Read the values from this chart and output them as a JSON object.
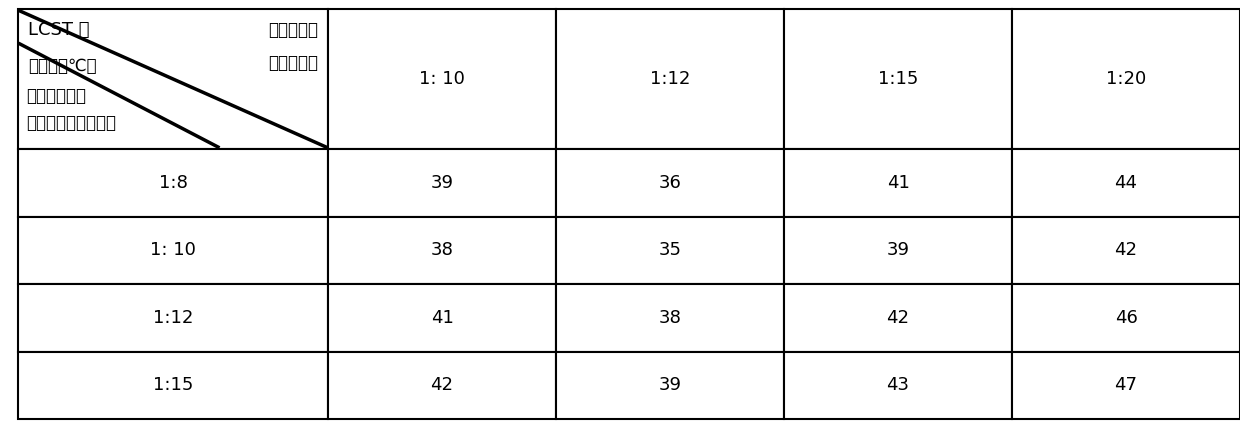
{
  "col_headers": [
    "1: 10",
    "1:12",
    "1:15",
    "1:20"
  ],
  "row_headers": [
    "1:8",
    "1: 10",
    "1:12",
    "1:15"
  ],
  "table_data": [
    [
      39,
      36,
      41,
      44
    ],
    [
      38,
      35,
      39,
      42
    ],
    [
      41,
      38,
      42,
      46
    ],
    [
      42,
      39,
      43,
      47
    ]
  ],
  "header_top_left_line1": "LCST 值",
  "header_top_left_line2": "（单位：℃）",
  "header_top_right_line1": "综合溶液与",
  "header_top_right_line2": "水的质量比",
  "header_bottom_left_line1": "基础溶液和羟",
  "header_bottom_left_line2": "甲基纤维素的质量比",
  "bg_color": "#ffffff",
  "border_color": "#000000",
  "font_size": 13,
  "header_font_size": 12
}
